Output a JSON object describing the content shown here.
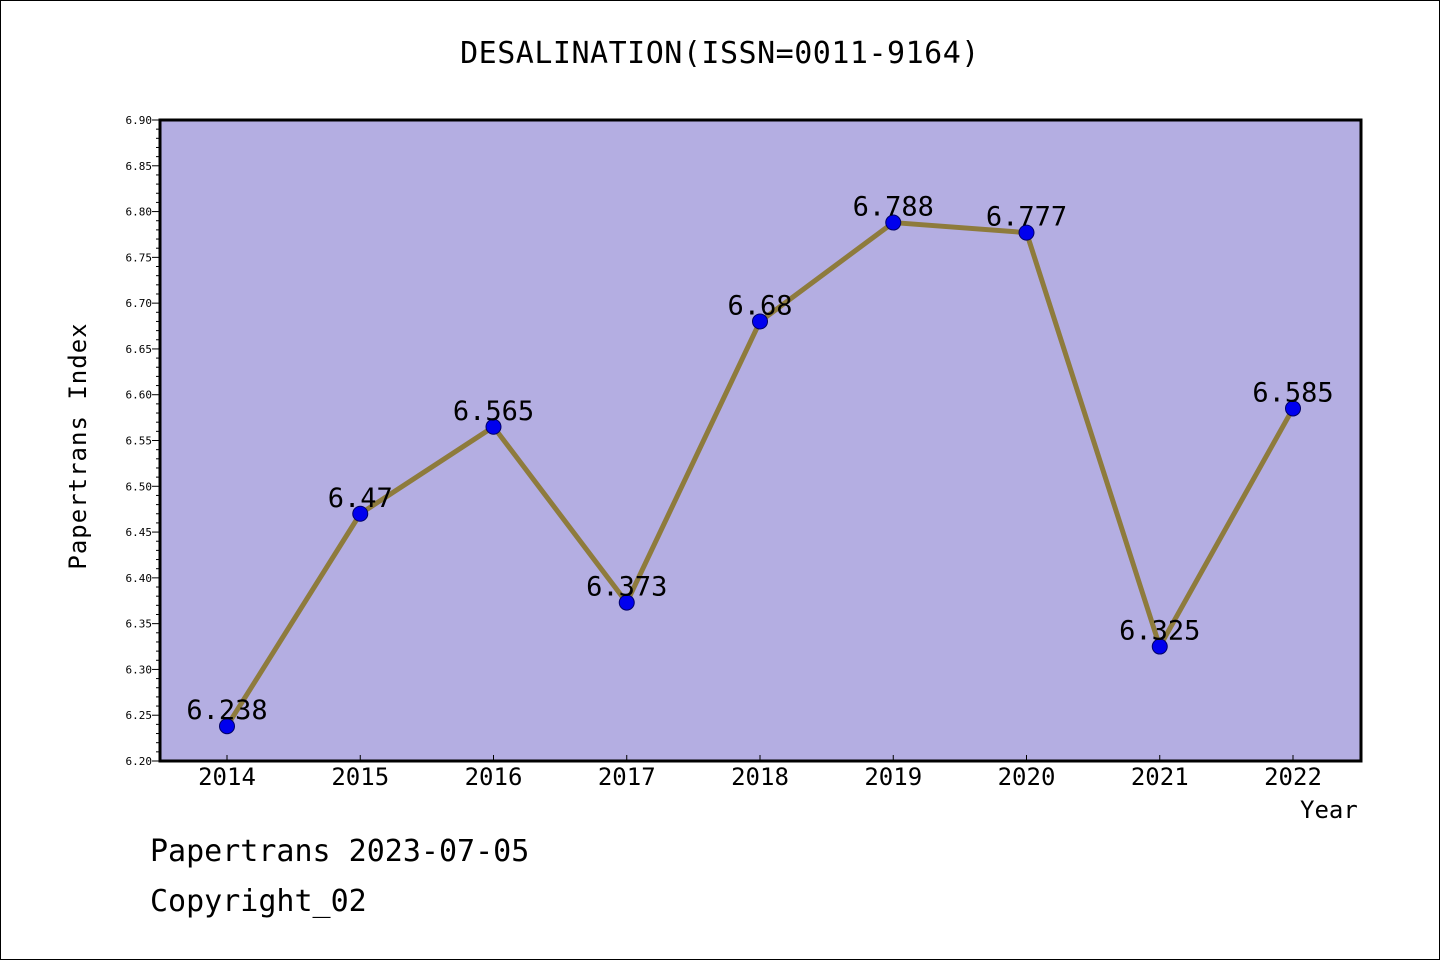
{
  "chart_data": {
    "type": "line",
    "title": "DESALINATION(ISSN=0011-9164)",
    "xlabel": "Year",
    "ylabel": "Papertrans Index",
    "categories": [
      "2014",
      "2015",
      "2016",
      "2017",
      "2018",
      "2019",
      "2020",
      "2021",
      "2022"
    ],
    "series": [
      {
        "values": [
          6.238,
          6.47,
          6.565,
          6.373,
          6.68,
          6.788,
          6.777,
          6.325,
          6.585
        ]
      }
    ],
    "data_labels": [
      "6.238",
      "6.47",
      "6.565",
      "6.373",
      "6.68",
      "6.788",
      "6.777",
      "6.325",
      "6.585"
    ],
    "ylim": [
      6.2,
      6.9
    ],
    "yticks": [
      "6.20",
      "6.25",
      "6.30",
      "6.35",
      "6.40",
      "6.45",
      "6.50",
      "6.55",
      "6.60",
      "6.65",
      "6.70",
      "6.75",
      "6.80",
      "6.85",
      "6.90"
    ],
    "grid": false,
    "colors": {
      "plot_background": "#b4aee2",
      "line": "#8e7b3c",
      "marker": "#0000ee",
      "marker_edge": "#000066"
    }
  },
  "footer": {
    "date_text": "Papertrans 2023-07-05",
    "copyright_text": "Copyright_02"
  }
}
